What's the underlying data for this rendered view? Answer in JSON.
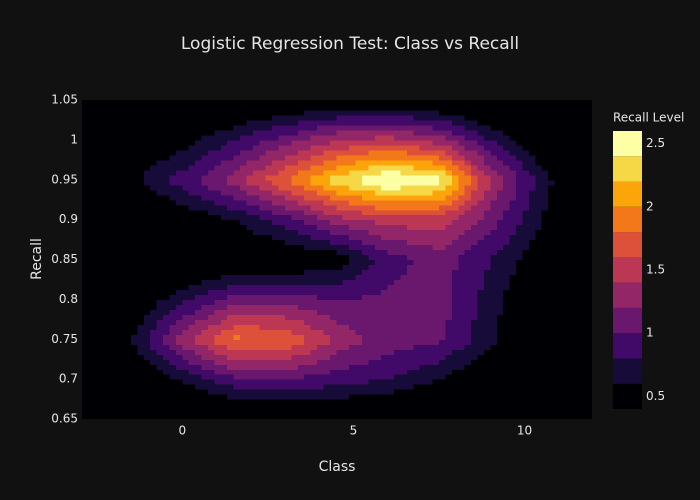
{
  "chart_data": {
    "type": "contour",
    "title": "Logistic Regression Test: Class vs Recall",
    "x_label": "Class",
    "y_label": "Recall",
    "colorbar_title": "Recall Level",
    "x": [
      -3,
      -1.5,
      0,
      1.5,
      3,
      4.5,
      6,
      7.5,
      9,
      10.5,
      12
    ],
    "y": [
      0.65,
      0.7,
      0.75,
      0.8,
      0.85,
      0.9,
      0.95,
      1.0,
      1.05
    ],
    "z": [
      [
        0,
        0.05,
        0.1,
        0.2,
        0.25,
        0.25,
        0.2,
        0.15,
        0.05,
        0,
        0
      ],
      [
        0.05,
        0.3,
        0.65,
        0.95,
        1.0,
        0.9,
        0.8,
        0.6,
        0.35,
        0.1,
        0
      ],
      [
        0.15,
        0.6,
        1.3,
        1.85,
        1.8,
        1.35,
        1.1,
        1.05,
        0.65,
        0.2,
        0.05
      ],
      [
        0.05,
        0.35,
        0.75,
        1.1,
        1.1,
        1.0,
        1.05,
        1.1,
        0.7,
        0.3,
        0.05
      ],
      [
        0,
        0.05,
        0.15,
        0.3,
        0.35,
        0.45,
        0.9,
        1.1,
        0.8,
        0.45,
        0.1
      ],
      [
        0.05,
        0.2,
        0.4,
        0.6,
        0.9,
        1.3,
        1.5,
        1.5,
        1.1,
        0.6,
        0.15
      ],
      [
        0.2,
        0.55,
        0.9,
        1.3,
        1.8,
        2.3,
        2.65,
        2.5,
        1.4,
        0.7,
        0.2
      ],
      [
        0.1,
        0.3,
        0.5,
        0.8,
        1.1,
        1.4,
        1.5,
        1.3,
        0.8,
        0.35,
        0.1
      ],
      [
        0.05,
        0.1,
        0.15,
        0.2,
        0.3,
        0.35,
        0.35,
        0.3,
        0.2,
        0.1,
        0.05
      ]
    ],
    "zlim": [
      0.4,
      2.6
    ],
    "contour_size": 0.2,
    "colorscale": [
      "#000004",
      "#160b39",
      "#420a68",
      "#6a176e",
      "#932667",
      "#bc3754",
      "#dd513a",
      "#f37819",
      "#fca50a",
      "#f6d746",
      "#fcffa4"
    ],
    "colorbar_ticks": [
      0.5,
      1,
      1.5,
      2,
      2.5
    ],
    "xlim": [
      -2.93,
      11.97
    ],
    "xticks": [
      0,
      5,
      10
    ],
    "ylim": [
      0.65,
      1.05
    ],
    "yticks": [
      0.65,
      0.7,
      0.75,
      0.8,
      0.85,
      0.9,
      0.95,
      1,
      1.05
    ]
  }
}
